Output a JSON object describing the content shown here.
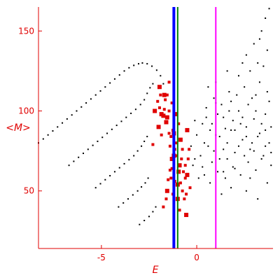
{
  "chart_data": {
    "type": "scatter",
    "title": "",
    "xlabel": "E",
    "ylabel": "<M>",
    "xlim": [
      -8.3,
      4.0
    ],
    "ylim": [
      14,
      165
    ],
    "x_ticks": [
      -5,
      0
    ],
    "y_ticks": [
      50,
      100,
      150
    ],
    "x_tick_labels": [
      "-5",
      "0"
    ],
    "y_tick_labels": [
      "50",
      "100",
      "150"
    ],
    "grid": false,
    "legend": "none",
    "series": [
      {
        "marker": "dot",
        "color": "#000000",
        "points": [
          [
            -8.3,
            80
          ],
          [
            -8.05,
            82.5
          ],
          [
            -7.8,
            85
          ],
          [
            -7.55,
            87.5
          ],
          [
            -7.3,
            90
          ],
          [
            -7.05,
            92.5
          ],
          [
            -6.8,
            95
          ],
          [
            -6.55,
            97.5
          ],
          [
            -6.3,
            100
          ],
          [
            -6.05,
            102.5
          ],
          [
            -5.8,
            105
          ],
          [
            -5.55,
            107.5
          ],
          [
            -5.3,
            110
          ],
          [
            -5.05,
            112.5
          ],
          [
            -4.8,
            115
          ],
          [
            -4.55,
            117.5
          ],
          [
            -4.3,
            120
          ],
          [
            -4.05,
            122.5
          ],
          [
            -3.8,
            125
          ],
          [
            -3.55,
            127
          ],
          [
            -3.3,
            128.5
          ],
          [
            -3.05,
            129.5
          ],
          [
            -2.85,
            130
          ],
          [
            -2.6,
            129.5
          ],
          [
            -2.35,
            128
          ],
          [
            -2.1,
            125.5
          ],
          [
            -1.9,
            122
          ],
          [
            -1.75,
            117
          ]
        ]
      },
      {
        "marker": "dot",
        "color": "#000000",
        "points": [
          [
            -6.7,
            66
          ],
          [
            -6.45,
            68.5
          ],
          [
            -6.2,
            71
          ],
          [
            -5.95,
            73.5
          ],
          [
            -5.7,
            76
          ],
          [
            -5.45,
            78.5
          ],
          [
            -5.2,
            81
          ],
          [
            -4.95,
            83.5
          ],
          [
            -4.7,
            86
          ],
          [
            -4.45,
            88.5
          ],
          [
            -4.2,
            91
          ],
          [
            -3.95,
            93.5
          ],
          [
            -3.7,
            96
          ],
          [
            -3.45,
            98.5
          ],
          [
            -3.2,
            101
          ],
          [
            -2.95,
            104
          ],
          [
            -2.75,
            107
          ],
          [
            -2.6,
            111
          ],
          [
            -2.45,
            114.5
          ],
          [
            -2.3,
            117
          ]
        ]
      },
      {
        "marker": "dot",
        "color": "#000000",
        "points": [
          [
            -5.3,
            52
          ],
          [
            -5.05,
            54.5
          ],
          [
            -4.8,
            57
          ],
          [
            -4.55,
            59.5
          ],
          [
            -4.3,
            62
          ],
          [
            -4.05,
            64.5
          ],
          [
            -3.8,
            67
          ],
          [
            -3.55,
            69.5
          ],
          [
            -3.3,
            72
          ],
          [
            -3.1,
            75
          ],
          [
            -2.9,
            78
          ],
          [
            -2.75,
            81
          ],
          [
            -2.6,
            84
          ]
        ]
      },
      {
        "marker": "dot",
        "color": "#000000",
        "points": [
          [
            -4.1,
            40
          ],
          [
            -3.85,
            42.5
          ],
          [
            -3.6,
            45
          ],
          [
            -3.35,
            47.5
          ],
          [
            -3.1,
            50
          ],
          [
            -2.9,
            52.5
          ],
          [
            -2.7,
            55
          ],
          [
            -2.55,
            58
          ]
        ]
      },
      {
        "marker": "dot",
        "color": "#000000",
        "points": [
          [
            -3.0,
            29
          ],
          [
            -2.75,
            31.5
          ],
          [
            -2.5,
            34
          ],
          [
            -2.3,
            37
          ],
          [
            -2.15,
            40
          ]
        ]
      },
      {
        "marker": "square",
        "color": "#e00000",
        "points": [
          [
            -2.2,
            100
          ],
          [
            -2.05,
            106
          ],
          [
            -1.9,
            110
          ],
          [
            -1.95,
            115
          ],
          [
            -1.55,
            110
          ],
          [
            -1.45,
            118
          ],
          [
            -1.85,
            98
          ],
          [
            -1.7,
            101
          ],
          [
            -1.95,
            102
          ],
          [
            -1.6,
            93
          ],
          [
            -1.45,
            86
          ],
          [
            -1.4,
            78
          ],
          [
            -1.3,
            70
          ],
          [
            -1.4,
            63
          ],
          [
            -1.5,
            57
          ],
          [
            -1.55,
            50
          ],
          [
            -1.6,
            45
          ],
          [
            -1.75,
            40
          ],
          [
            -1.2,
            86
          ],
          [
            -1.1,
            80
          ],
          [
            -1.05,
            72
          ],
          [
            -0.95,
            62
          ],
          [
            -0.85,
            55
          ],
          [
            -0.65,
            45
          ],
          [
            -0.55,
            35
          ],
          [
            -1.15,
            56
          ],
          [
            -1.25,
            48
          ],
          [
            -2.0,
            90
          ],
          [
            -1.85,
            85
          ],
          [
            -2.3,
            79
          ],
          [
            -1.75,
            97
          ]
        ]
      },
      {
        "marker": "square",
        "color": "#e00000",
        "points": [
          [
            -1.7,
            110
          ],
          [
            -1.65,
            107
          ],
          [
            -1.3,
            105
          ],
          [
            -1.1,
            98
          ],
          [
            -0.95,
            92
          ],
          [
            -1.25,
            88
          ],
          [
            -0.85,
            82
          ],
          [
            -0.75,
            76
          ],
          [
            -0.8,
            70
          ],
          [
            -0.9,
            66
          ],
          [
            -0.7,
            62
          ],
          [
            -0.6,
            58
          ],
          [
            -1.0,
            54
          ],
          [
            -0.75,
            50
          ],
          [
            -0.55,
            48
          ],
          [
            -1.2,
            72
          ],
          [
            -1.3,
            64
          ],
          [
            -1.35,
            58
          ],
          [
            -1.0,
            45
          ],
          [
            -0.9,
            38
          ],
          [
            -0.6,
            66
          ],
          [
            -0.5,
            88
          ],
          [
            -0.4,
            76
          ],
          [
            -0.45,
            70
          ],
          [
            -0.5,
            60
          ],
          [
            -0.35,
            52
          ],
          [
            -1.45,
            100
          ],
          [
            -1.55,
            96
          ],
          [
            -1.35,
            84
          ],
          [
            -1.15,
            76
          ]
        ]
      },
      {
        "marker": "dot",
        "color": "#000000",
        "points": [
          [
            0.6,
            78
          ],
          [
            0.8,
            92
          ],
          [
            1.0,
            85
          ],
          [
            1.2,
            70
          ],
          [
            1.4,
            96
          ],
          [
            1.6,
            80
          ],
          [
            1.8,
            88
          ],
          [
            2.0,
            74
          ],
          [
            2.2,
            100
          ],
          [
            2.4,
            82
          ],
          [
            2.6,
            90
          ],
          [
            2.8,
            76
          ],
          [
            3.0,
            95
          ],
          [
            3.2,
            84
          ],
          [
            3.4,
            70
          ],
          [
            3.6,
            88
          ],
          [
            3.8,
            80
          ],
          [
            0.4,
            60
          ],
          [
            0.7,
            55
          ],
          [
            1.1,
            62
          ],
          [
            1.5,
            58
          ],
          [
            1.9,
            65
          ],
          [
            2.3,
            60
          ],
          [
            2.7,
            68
          ],
          [
            3.1,
            63
          ],
          [
            3.5,
            72
          ],
          [
            3.9,
            66
          ],
          [
            0.5,
            102
          ],
          [
            0.9,
            108
          ],
          [
            1.3,
            104
          ],
          [
            1.7,
            112
          ],
          [
            2.1,
            110
          ],
          [
            2.5,
            115
          ],
          [
            2.9,
            108
          ],
          [
            3.3,
            118
          ],
          [
            3.7,
            112
          ],
          [
            0.2,
            72
          ],
          [
            0.0,
            85
          ],
          [
            -0.2,
            66
          ],
          [
            0.3,
            92
          ],
          [
            2.6,
            135
          ],
          [
            3.0,
            142
          ],
          [
            3.4,
            150
          ],
          [
            3.6,
            158
          ],
          [
            3.8,
            164
          ],
          [
            3.2,
            130
          ],
          [
            2.8,
            125
          ],
          [
            3.5,
            128
          ],
          [
            1.6,
            125
          ],
          [
            2.2,
            122
          ],
          [
            3.7,
            138
          ],
          [
            3.3,
            145
          ],
          [
            2.4,
            130
          ],
          [
            1.0,
            118
          ],
          [
            0.6,
            115
          ],
          [
            -0.1,
            94
          ],
          [
            0.1,
            58
          ],
          [
            1.3,
            48
          ],
          [
            1.8,
            52
          ],
          [
            2.6,
            50
          ],
          [
            3.2,
            45
          ],
          [
            3.7,
            55
          ],
          [
            2.0,
            88
          ],
          [
            1.4,
            76
          ],
          [
            0.8,
            68
          ],
          [
            2.9,
            80
          ],
          [
            3.6,
            98
          ],
          [
            3.9,
            90
          ],
          [
            2.5,
            72
          ],
          [
            1.9,
            94
          ],
          [
            1.1,
            98
          ],
          [
            0.4,
            80
          ],
          [
            -0.3,
            78
          ],
          [
            2.7,
            104
          ],
          [
            3.1,
            100
          ],
          [
            3.8,
            106
          ],
          [
            1.5,
            89
          ],
          [
            2.2,
            78
          ],
          [
            0.9,
            75
          ],
          [
            1.7,
            100
          ],
          [
            3.4,
            92
          ],
          [
            2.0,
            64
          ],
          [
            2.8,
            58
          ],
          [
            1.2,
            84
          ],
          [
            0.7,
            88
          ],
          [
            3.0,
            75
          ],
          [
            3.6,
            78
          ],
          [
            2.4,
            96
          ],
          [
            1.6,
            70
          ],
          [
            0.3,
            65
          ],
          [
            -0.1,
            70
          ],
          [
            1.0,
            105
          ],
          [
            2.6,
            84
          ],
          [
            3.3,
            86
          ],
          [
            3.9,
            74
          ],
          [
            1.8,
            106
          ],
          [
            2.3,
            92
          ],
          [
            3.1,
            110
          ],
          [
            0.5,
            96
          ],
          [
            1.4,
            62
          ]
        ]
      }
    ],
    "reference_lines": [
      {
        "orientation": "vertical",
        "x": -1.2,
        "color": "#0000ff"
      },
      {
        "orientation": "vertical",
        "x": -1.0,
        "color": "#008000"
      },
      {
        "orientation": "vertical",
        "x": 1.0,
        "color": "#ff00ff"
      }
    ],
    "axis_color": "#e00000"
  }
}
